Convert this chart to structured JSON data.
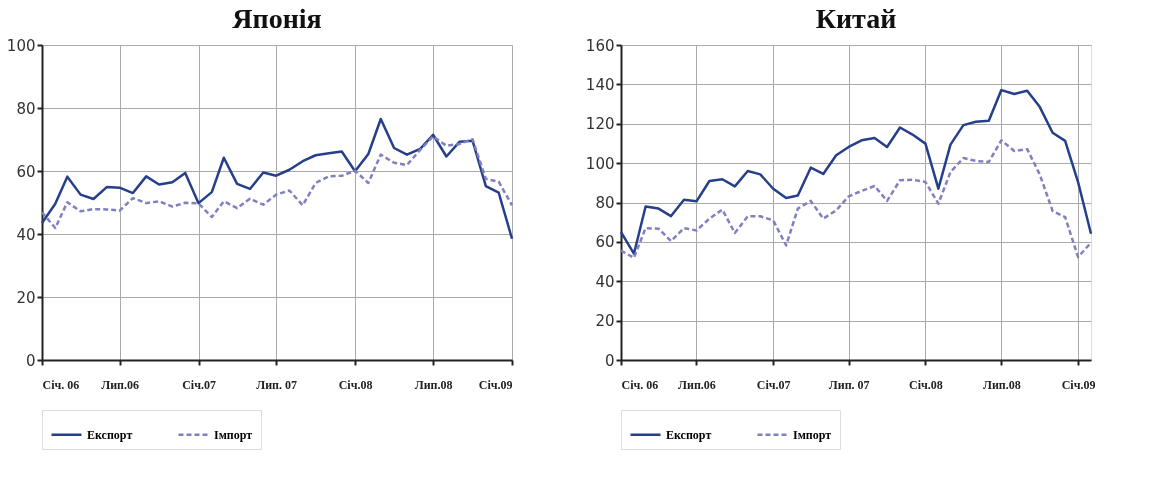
{
  "chart_data": [
    {
      "type": "line",
      "title": "Японія",
      "x": [
        "2006-01",
        "2006-02",
        "2006-03",
        "2006-04",
        "2006-05",
        "2006-06",
        "2006-07",
        "2006-08",
        "2006-09",
        "2006-10",
        "2006-11",
        "2006-12",
        "2007-01",
        "2007-02",
        "2007-03",
        "2007-04",
        "2007-05",
        "2007-06",
        "2007-07",
        "2007-08",
        "2007-09",
        "2007-10",
        "2007-11",
        "2007-12",
        "2008-01",
        "2008-02",
        "2008-03",
        "2008-04",
        "2008-05",
        "2008-06",
        "2008-07",
        "2008-08",
        "2008-09",
        "2008-10",
        "2008-11",
        "2008-12",
        "2009-01"
      ],
      "series": [
        {
          "name": "Експорт",
          "color": "#253f8a",
          "line_style": "solid",
          "values": [
            43.5,
            49.6,
            58.2,
            52.5,
            51.1,
            54.9,
            54.7,
            53.0,
            58.3,
            55.7,
            56.4,
            59.4,
            49.8,
            53.3,
            64.2,
            55.9,
            54.3,
            59.5,
            58.5,
            60.4,
            63.1,
            65.0,
            65.6,
            66.2,
            59.9,
            65.4,
            76.5,
            67.3,
            65.2,
            67.0,
            71.5,
            64.6,
            69.3,
            69.6,
            55.2,
            53.1,
            38.5
          ]
        },
        {
          "name": "Імпорт",
          "color": "#8080c0",
          "line_style": "dashed",
          "values": [
            46.9,
            41.9,
            50.1,
            47.2,
            47.9,
            47.8,
            47.4,
            51.4,
            49.8,
            50.4,
            48.7,
            49.9,
            49.7,
            45.4,
            50.4,
            48.2,
            51.2,
            49.3,
            52.5,
            53.8,
            49.1,
            56.2,
            58.3,
            58.5,
            60.1,
            56.2,
            65.2,
            62.6,
            61.9,
            66.7,
            71.0,
            68.0,
            68.6,
            70.1,
            57.5,
            56.6,
            49.1
          ]
        }
      ],
      "xlim": [
        "2006-01",
        "2009-01"
      ],
      "xticks": [
        {
          "value": "2006-01",
          "label": "Січ. 06"
        },
        {
          "value": "2006-07",
          "label": "Лип.06"
        },
        {
          "value": "2007-01",
          "label": "Січ.07"
        },
        {
          "value": "2007-07",
          "label": "Лип. 07"
        },
        {
          "value": "2008-01",
          "label": "Січ.08"
        },
        {
          "value": "2008-07",
          "label": "Лип.08"
        },
        {
          "value": "2009-01",
          "label": "Січ.09"
        }
      ],
      "ylim": [
        0,
        100
      ],
      "yticks": [
        0,
        20,
        40,
        60,
        80,
        100
      ],
      "grid": true,
      "legend": "bottom"
    },
    {
      "type": "line",
      "title": "Китай",
      "x": [
        "2006-01",
        "2006-02",
        "2006-03",
        "2006-04",
        "2006-05",
        "2006-06",
        "2006-07",
        "2006-08",
        "2006-09",
        "2006-10",
        "2006-11",
        "2006-12",
        "2007-01",
        "2007-02",
        "2007-03",
        "2007-04",
        "2007-05",
        "2007-06",
        "2007-07",
        "2007-08",
        "2007-09",
        "2007-10",
        "2007-11",
        "2007-12",
        "2008-01",
        "2008-02",
        "2008-03",
        "2008-04",
        "2008-05",
        "2008-06",
        "2008-07",
        "2008-08",
        "2008-09",
        "2008-10",
        "2008-11",
        "2008-12",
        "2009-01",
        "2009-02"
      ],
      "series": [
        {
          "name": "Експорт",
          "color": "#253f8a",
          "line_style": "solid",
          "values": [
            65.0,
            54.0,
            78.0,
            76.9,
            73.1,
            81.4,
            80.6,
            90.9,
            91.8,
            88.2,
            96.0,
            94.3,
            87.0,
            82.3,
            83.6,
            97.7,
            94.5,
            104.0,
            108.2,
            111.6,
            112.8,
            108.2,
            118.1,
            114.5,
            109.9,
            87.0,
            109.4,
            119.3,
            121.0,
            121.5,
            137.1,
            135.1,
            136.8,
            128.6,
            115.4,
            111.3,
            90.4,
            64.1
          ]
        },
        {
          "name": "Імпорт",
          "color": "#8080c0",
          "line_style": "dashed",
          "values": [
            55.6,
            51.9,
            67.0,
            66.7,
            60.4,
            67.0,
            65.8,
            71.8,
            76.4,
            64.5,
            73.0,
            73.0,
            70.9,
            58.2,
            76.9,
            80.8,
            71.8,
            76.0,
            83.1,
            85.9,
            88.4,
            80.8,
            91.3,
            91.6,
            90.4,
            79.4,
            95.5,
            102.6,
            101.1,
            100.6,
            111.6,
            106.2,
            107.1,
            94.3,
            75.7,
            72.6,
            52.3,
            59.6
          ]
        }
      ],
      "xlim": [
        "2006-01",
        "2009-02"
      ],
      "xticks": [
        {
          "value": "2006-01",
          "label": "Січ. 06"
        },
        {
          "value": "2006-07",
          "label": "Лип.06"
        },
        {
          "value": "2007-01",
          "label": "Січ.07"
        },
        {
          "value": "2007-07",
          "label": "Лип. 07"
        },
        {
          "value": "2008-01",
          "label": "Січ.08"
        },
        {
          "value": "2008-07",
          "label": "Лип.08"
        },
        {
          "value": "2009-01",
          "label": "Січ.09"
        }
      ],
      "ylim": [
        0,
        160
      ],
      "yticks": [
        0,
        20,
        40,
        60,
        80,
        100,
        120,
        140,
        160
      ],
      "grid": true,
      "legend": "bottom"
    }
  ]
}
